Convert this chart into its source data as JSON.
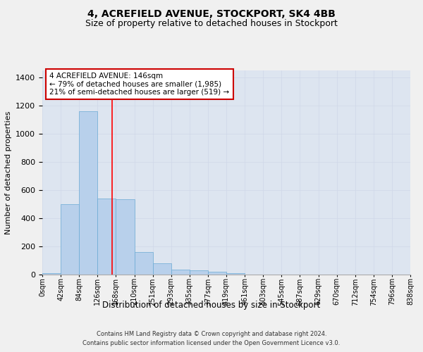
{
  "title": "4, ACREFIELD AVENUE, STOCKPORT, SK4 4BB",
  "subtitle": "Size of property relative to detached houses in Stockport",
  "xlabel": "Distribution of detached houses by size in Stockport",
  "ylabel": "Number of detached properties",
  "footer_line1": "Contains HM Land Registry data © Crown copyright and database right 2024.",
  "footer_line2": "Contains public sector information licensed under the Open Government Licence v3.0.",
  "bin_labels": [
    "0sqm",
    "42sqm",
    "84sqm",
    "126sqm",
    "168sqm",
    "210sqm",
    "251sqm",
    "293sqm",
    "335sqm",
    "377sqm",
    "419sqm",
    "461sqm",
    "503sqm",
    "545sqm",
    "587sqm",
    "629sqm",
    "670sqm",
    "712sqm",
    "754sqm",
    "796sqm",
    "838sqm"
  ],
  "bar_values": [
    10,
    500,
    1160,
    540,
    535,
    160,
    80,
    35,
    28,
    18,
    12,
    0,
    0,
    0,
    0,
    0,
    0,
    0,
    0,
    0
  ],
  "bar_color": "#b8d0eb",
  "bar_edge_color": "#6aaad4",
  "annotation_line1": "4 ACREFIELD AVENUE: 146sqm",
  "annotation_line2": "← 79% of detached houses are smaller (1,985)",
  "annotation_line3": "21% of semi-detached houses are larger (519) →",
  "annotation_box_color": "#ffffff",
  "annotation_box_edge": "#cc0000",
  "redline_x": 3.81,
  "ylim": [
    0,
    1450
  ],
  "yticks": [
    0,
    200,
    400,
    600,
    800,
    1000,
    1200,
    1400
  ],
  "grid_color": "#d0d8e8",
  "bg_color": "#dde5f0",
  "title_fontsize": 10,
  "subtitle_fontsize": 9,
  "tick_fontsize": 7,
  "ylabel_fontsize": 8,
  "xlabel_fontsize": 8.5,
  "annotation_fontsize": 7.5,
  "footer_fontsize": 6
}
